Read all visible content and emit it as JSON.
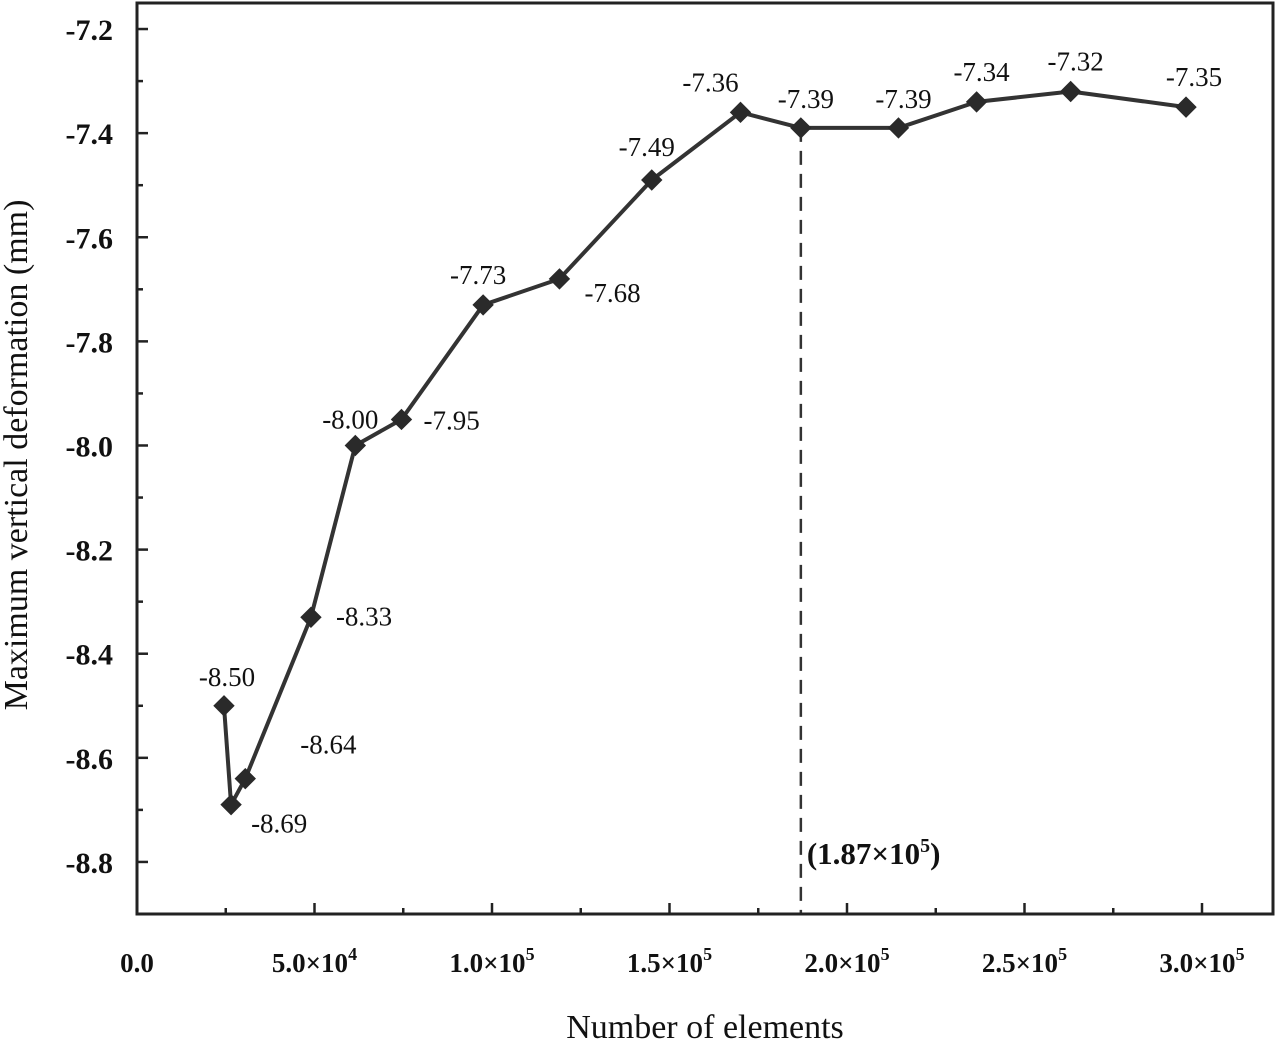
{
  "chart_data": {
    "type": "line",
    "xlabel": "Number of elements",
    "ylabel": "Maximum vertical deformation (mm)",
    "xlim": [
      0,
      320000
    ],
    "ylim": [
      -8.9,
      -7.15
    ],
    "grid": false,
    "x_ticks": [
      {
        "value": 0,
        "label": "0.0"
      },
      {
        "value": 50000,
        "label": "5.0×10",
        "exp": "4"
      },
      {
        "value": 100000,
        "label": "1.0×10",
        "exp": "5"
      },
      {
        "value": 150000,
        "label": "1.5×10",
        "exp": "5"
      },
      {
        "value": 200000,
        "label": "2.0×10",
        "exp": "5"
      },
      {
        "value": 250000,
        "label": "2.5×10",
        "exp": "5"
      },
      {
        "value": 300000,
        "label": "3.0×10",
        "exp": "5"
      }
    ],
    "y_ticks": [
      {
        "value": -7.2,
        "label": "-7.2"
      },
      {
        "value": -7.4,
        "label": "-7.4"
      },
      {
        "value": -7.6,
        "label": "-7.6"
      },
      {
        "value": -7.8,
        "label": "-7.8"
      },
      {
        "value": -8.0,
        "label": "-8.0"
      },
      {
        "value": -8.2,
        "label": "-8.2"
      },
      {
        "value": -8.4,
        "label": "-8.4"
      },
      {
        "value": -8.6,
        "label": "-8.6"
      },
      {
        "value": -8.8,
        "label": "-8.8"
      }
    ],
    "series": [
      {
        "marker": "diamond",
        "color": "#333333",
        "points": [
          {
            "x": 24500,
            "y": -8.5,
            "label": "-8.50"
          },
          {
            "x": 26500,
            "y": -8.69,
            "label": "-8.69"
          },
          {
            "x": 30500,
            "y": -8.64,
            "label": "-8.64"
          },
          {
            "x": 49000,
            "y": -8.33,
            "label": "-8.33"
          },
          {
            "x": 61500,
            "y": -8.0,
            "label": "-8.00"
          },
          {
            "x": 74500,
            "y": -7.95,
            "label": "-7.95"
          },
          {
            "x": 97500,
            "y": -7.73,
            "label": "-7.73"
          },
          {
            "x": 119000,
            "y": -7.68,
            "label": "-7.68"
          },
          {
            "x": 145000,
            "y": -7.49,
            "label": "-7.49"
          },
          {
            "x": 170000,
            "y": -7.36,
            "label": "-7.36"
          },
          {
            "x": 187000,
            "y": -7.39,
            "label": "-7.39"
          },
          {
            "x": 214500,
            "y": -7.39,
            "label": "-7.39"
          },
          {
            "x": 236500,
            "y": -7.34,
            "label": "-7.34"
          },
          {
            "x": 263000,
            "y": -7.32,
            "label": "-7.32"
          },
          {
            "x": 295500,
            "y": -7.35,
            "label": "-7.35"
          }
        ]
      }
    ],
    "annotations": [
      {
        "type": "vline",
        "x": 187000,
        "style": "dashed",
        "text": "(1.87×10",
        "exp": "5",
        "text_after": ")"
      }
    ]
  }
}
